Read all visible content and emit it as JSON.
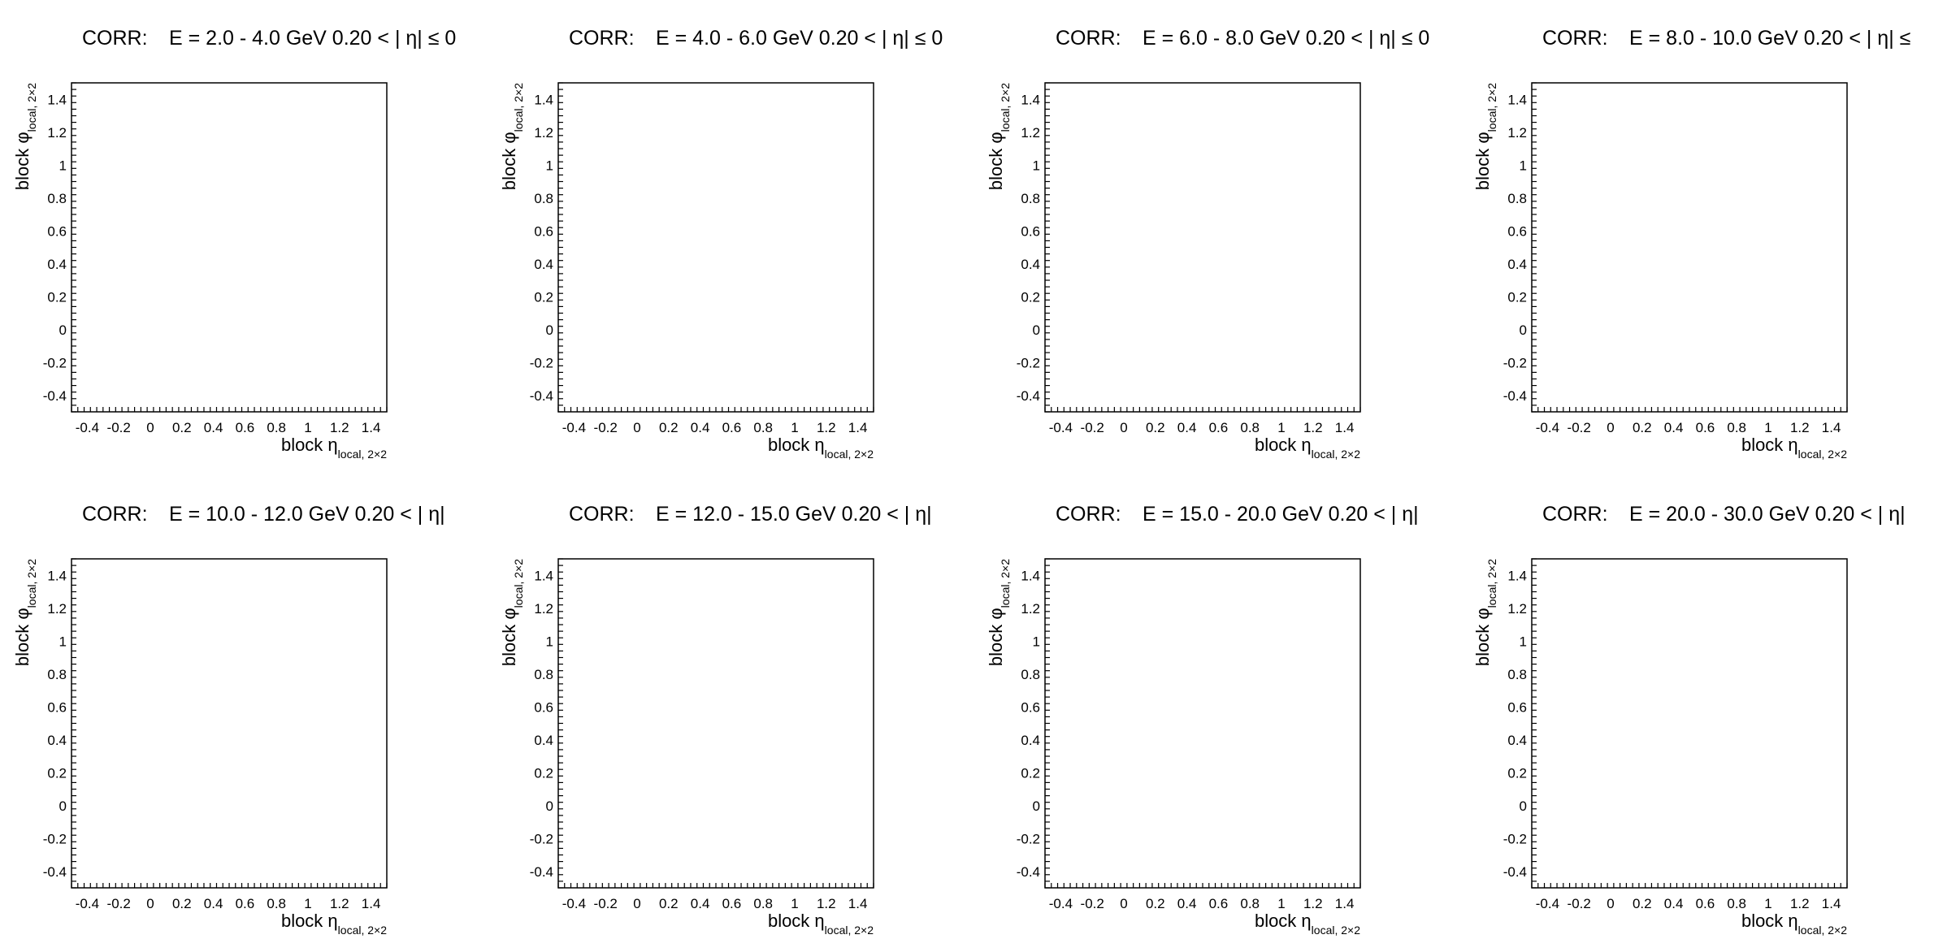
{
  "chart_data": [
    {
      "type": "heatmap",
      "title_prefix": "CORR:",
      "title_main": "E = 2.0 - 4.0 GeV   0.20 < |  η| ≤ 0",
      "xlabel_main": "block η",
      "xlabel_sub": "local, 2×2",
      "ylabel_main": "block φ",
      "ylabel_sub": "local, 2×2",
      "xlim": [
        -0.5,
        1.5
      ],
      "ylim": [
        -0.5,
        1.5
      ],
      "xticks": [
        "-0.4",
        "-0.2",
        "0",
        "0.2",
        "0.4",
        "0.6",
        "0.8",
        "1",
        "1.2",
        "1.4"
      ],
      "yticks": [
        "-0.4",
        "-0.2",
        "0",
        "0.2",
        "0.4",
        "0.6",
        "0.8",
        "1",
        "1.2",
        "1.4"
      ],
      "values": []
    },
    {
      "type": "heatmap",
      "title_prefix": "CORR:",
      "title_main": "E = 4.0 - 6.0 GeV   0.20 < |  η| ≤ 0",
      "xlabel_main": "block η",
      "xlabel_sub": "local, 2×2",
      "ylabel_main": "block φ",
      "ylabel_sub": "local, 2×2",
      "xlim": [
        -0.5,
        1.5
      ],
      "ylim": [
        -0.5,
        1.5
      ],
      "xticks": [
        "-0.4",
        "-0.2",
        "0",
        "0.2",
        "0.4",
        "0.6",
        "0.8",
        "1",
        "1.2",
        "1.4"
      ],
      "yticks": [
        "-0.4",
        "-0.2",
        "0",
        "0.2",
        "0.4",
        "0.6",
        "0.8",
        "1",
        "1.2",
        "1.4"
      ],
      "values": []
    },
    {
      "type": "heatmap",
      "title_prefix": "CORR:",
      "title_main": "E = 6.0 - 8.0 GeV   0.20 < |  η| ≤ 0",
      "xlabel_main": "block η",
      "xlabel_sub": "local, 2×2",
      "ylabel_main": "block φ",
      "ylabel_sub": "local, 2×2",
      "xlim": [
        -0.5,
        1.5
      ],
      "ylim": [
        -0.5,
        1.5
      ],
      "xticks": [
        "-0.4",
        "-0.2",
        "0",
        "0.2",
        "0.4",
        "0.6",
        "0.8",
        "1",
        "1.2",
        "1.4"
      ],
      "yticks": [
        "-0.4",
        "-0.2",
        "0",
        "0.2",
        "0.4",
        "0.6",
        "0.8",
        "1",
        "1.2",
        "1.4"
      ],
      "values": []
    },
    {
      "type": "heatmap",
      "title_prefix": "CORR:",
      "title_main": "E = 8.0 - 10.0 GeV   0.20 < |  η| ≤",
      "xlabel_main": "block η",
      "xlabel_sub": "local, 2×2",
      "ylabel_main": "block φ",
      "ylabel_sub": "local, 2×2",
      "xlim": [
        -0.5,
        1.5
      ],
      "ylim": [
        -0.5,
        1.5
      ],
      "xticks": [
        "-0.4",
        "-0.2",
        "0",
        "0.2",
        "0.4",
        "0.6",
        "0.8",
        "1",
        "1.2",
        "1.4"
      ],
      "yticks": [
        "-0.4",
        "-0.2",
        "0",
        "0.2",
        "0.4",
        "0.6",
        "0.8",
        "1",
        "1.2",
        "1.4"
      ],
      "values": []
    },
    {
      "type": "heatmap",
      "title_prefix": "CORR:",
      "title_main": "E = 10.0 - 12.0 GeV   0.20 < |  η|",
      "xlabel_main": "block η",
      "xlabel_sub": "local, 2×2",
      "ylabel_main": "block φ",
      "ylabel_sub": "local, 2×2",
      "xlim": [
        -0.5,
        1.5
      ],
      "ylim": [
        -0.5,
        1.5
      ],
      "xticks": [
        "-0.4",
        "-0.2",
        "0",
        "0.2",
        "0.4",
        "0.6",
        "0.8",
        "1",
        "1.2",
        "1.4"
      ],
      "yticks": [
        "-0.4",
        "-0.2",
        "0",
        "0.2",
        "0.4",
        "0.6",
        "0.8",
        "1",
        "1.2",
        "1.4"
      ],
      "values": []
    },
    {
      "type": "heatmap",
      "title_prefix": "CORR:",
      "title_main": "E = 12.0 - 15.0 GeV   0.20 < |  η|",
      "xlabel_main": "block η",
      "xlabel_sub": "local, 2×2",
      "ylabel_main": "block φ",
      "ylabel_sub": "local, 2×2",
      "xlim": [
        -0.5,
        1.5
      ],
      "ylim": [
        -0.5,
        1.5
      ],
      "xticks": [
        "-0.4",
        "-0.2",
        "0",
        "0.2",
        "0.4",
        "0.6",
        "0.8",
        "1",
        "1.2",
        "1.4"
      ],
      "yticks": [
        "-0.4",
        "-0.2",
        "0",
        "0.2",
        "0.4",
        "0.6",
        "0.8",
        "1",
        "1.2",
        "1.4"
      ],
      "values": []
    },
    {
      "type": "heatmap",
      "title_prefix": "CORR:",
      "title_main": "E = 15.0 - 20.0 GeV   0.20 < |  η|",
      "xlabel_main": "block η",
      "xlabel_sub": "local, 2×2",
      "ylabel_main": "block φ",
      "ylabel_sub": "local, 2×2",
      "xlim": [
        -0.5,
        1.5
      ],
      "ylim": [
        -0.5,
        1.5
      ],
      "xticks": [
        "-0.4",
        "-0.2",
        "0",
        "0.2",
        "0.4",
        "0.6",
        "0.8",
        "1",
        "1.2",
        "1.4"
      ],
      "yticks": [
        "-0.4",
        "-0.2",
        "0",
        "0.2",
        "0.4",
        "0.6",
        "0.8",
        "1",
        "1.2",
        "1.4"
      ],
      "values": []
    },
    {
      "type": "heatmap",
      "title_prefix": "CORR:",
      "title_main": "E = 20.0 - 30.0 GeV   0.20 < |  η|",
      "xlabel_main": "block η",
      "xlabel_sub": "local, 2×2",
      "ylabel_main": "block φ",
      "ylabel_sub": "local, 2×2",
      "xlim": [
        -0.5,
        1.5
      ],
      "ylim": [
        -0.5,
        1.5
      ],
      "xticks": [
        "-0.4",
        "-0.2",
        "0",
        "0.2",
        "0.4",
        "0.6",
        "0.8",
        "1",
        "1.2",
        "1.4"
      ],
      "yticks": [
        "-0.4",
        "-0.2",
        "0",
        "0.2",
        "0.4",
        "0.6",
        "0.8",
        "1",
        "1.2",
        "1.4"
      ],
      "values": []
    }
  ]
}
